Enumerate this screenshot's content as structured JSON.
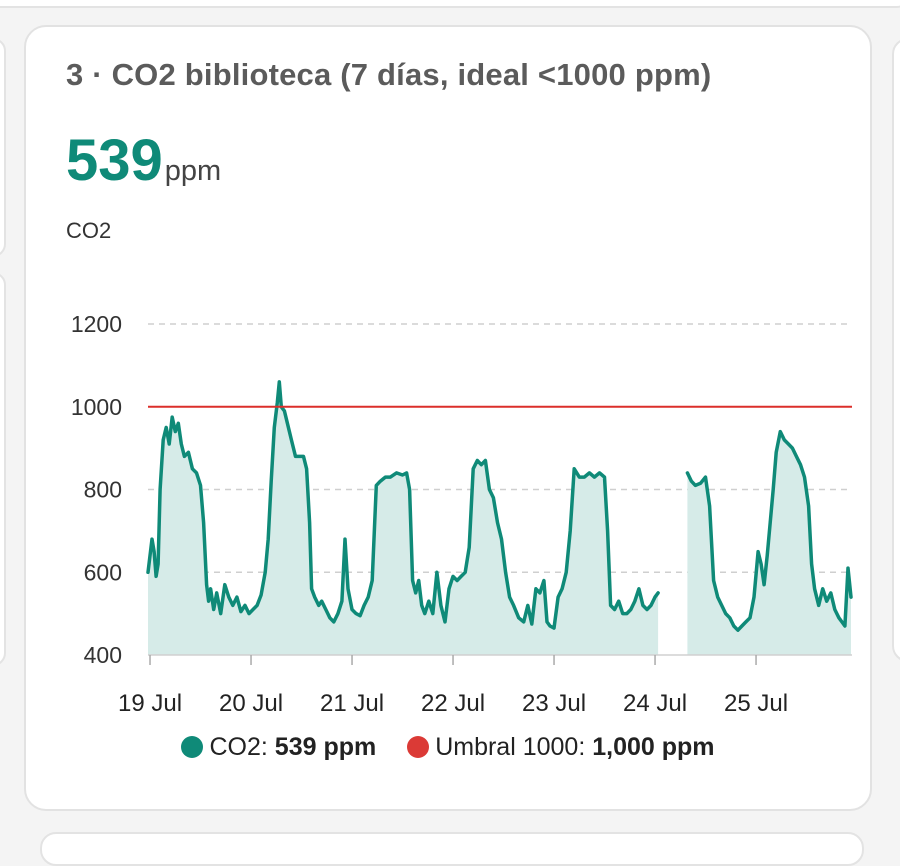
{
  "card": {
    "title": "3 · CO2 biblioteca (7 días, ideal <1000 ppm)",
    "current_value": "539",
    "current_unit": "ppm",
    "entity_label": "CO2"
  },
  "colors": {
    "co2": "#0f8a78",
    "co2_fill": "#d6ebe8",
    "threshold": "#db2f2a"
  },
  "legend": [
    {
      "name": "CO2",
      "sep": ": ",
      "value": "539 ppm",
      "color": "#0f8a78"
    },
    {
      "name": "Umbral 1000",
      "sep": ": ",
      "value": "1,000 ppm",
      "color": "#db3a36"
    }
  ],
  "chart_data": {
    "type": "line",
    "ylim": [
      400,
      1200
    ],
    "y_ticks": [
      400,
      600,
      800,
      1000,
      1200
    ],
    "y_tick_labels": [
      "400",
      "600",
      "800",
      "1000",
      "1200"
    ],
    "xlim": [
      -0.02,
      6.95
    ],
    "x_ticks": [
      0,
      1,
      2,
      3,
      4,
      5,
      6
    ],
    "x_tick_labels": [
      "19 Jul",
      "20 Jul",
      "21 Jul",
      "22 Jul",
      "23 Jul",
      "24 Jul",
      "25 Jul"
    ],
    "grid": true,
    "series": [
      {
        "name": "CO2",
        "area": true,
        "segments": [
          [
            [
              -0.02,
              600
            ],
            [
              0.02,
              680
            ],
            [
              0.04,
              650
            ],
            [
              0.06,
              590
            ],
            [
              0.08,
              620
            ],
            [
              0.1,
              800
            ],
            [
              0.13,
              920
            ],
            [
              0.16,
              950
            ],
            [
              0.19,
              910
            ],
            [
              0.22,
              975
            ],
            [
              0.25,
              940
            ],
            [
              0.28,
              960
            ],
            [
              0.31,
              910
            ],
            [
              0.34,
              880
            ],
            [
              0.38,
              890
            ],
            [
              0.42,
              850
            ],
            [
              0.46,
              840
            ],
            [
              0.5,
              810
            ],
            [
              0.53,
              720
            ],
            [
              0.56,
              570
            ],
            [
              0.58,
              530
            ],
            [
              0.6,
              560
            ],
            [
              0.63,
              510
            ],
            [
              0.66,
              550
            ],
            [
              0.7,
              500
            ],
            [
              0.74,
              570
            ],
            [
              0.78,
              540
            ],
            [
              0.82,
              520
            ],
            [
              0.86,
              540
            ],
            [
              0.9,
              505
            ],
            [
              0.94,
              520
            ],
            [
              0.98,
              500
            ],
            [
              1.02,
              510
            ],
            [
              1.06,
              520
            ],
            [
              1.1,
              545
            ],
            [
              1.14,
              600
            ],
            [
              1.17,
              680
            ],
            [
              1.2,
              820
            ],
            [
              1.23,
              950
            ],
            [
              1.26,
              1010
            ],
            [
              1.28,
              1060
            ],
            [
              1.3,
              1000
            ],
            [
              1.33,
              990
            ],
            [
              1.36,
              960
            ],
            [
              1.4,
              920
            ],
            [
              1.44,
              880
            ],
            [
              1.48,
              880
            ],
            [
              1.52,
              880
            ],
            [
              1.55,
              850
            ],
            [
              1.58,
              720
            ],
            [
              1.6,
              560
            ],
            [
              1.63,
              540
            ],
            [
              1.67,
              520
            ],
            [
              1.7,
              530
            ],
            [
              1.74,
              510
            ],
            [
              1.78,
              490
            ],
            [
              1.82,
              480
            ],
            [
              1.86,
              500
            ],
            [
              1.9,
              530
            ],
            [
              1.93,
              680
            ],
            [
              1.96,
              560
            ],
            [
              2.0,
              510
            ],
            [
              2.04,
              500
            ],
            [
              2.08,
              495
            ],
            [
              2.12,
              520
            ],
            [
              2.16,
              540
            ],
            [
              2.2,
              580
            ],
            [
              2.24,
              810
            ],
            [
              2.28,
              820
            ],
            [
              2.33,
              830
            ],
            [
              2.38,
              830
            ],
            [
              2.44,
              840
            ],
            [
              2.5,
              835
            ],
            [
              2.54,
              840
            ],
            [
              2.57,
              800
            ],
            [
              2.6,
              580
            ],
            [
              2.63,
              550
            ],
            [
              2.66,
              580
            ],
            [
              2.69,
              520
            ],
            [
              2.72,
              500
            ],
            [
              2.76,
              530
            ],
            [
              2.8,
              500
            ],
            [
              2.84,
              600
            ],
            [
              2.88,
              520
            ],
            [
              2.92,
              480
            ],
            [
              2.96,
              560
            ],
            [
              3.0,
              590
            ],
            [
              3.04,
              580
            ],
            [
              3.08,
              590
            ],
            [
              3.12,
              600
            ],
            [
              3.16,
              660
            ],
            [
              3.2,
              850
            ],
            [
              3.24,
              870
            ],
            [
              3.28,
              860
            ],
            [
              3.32,
              870
            ],
            [
              3.36,
              800
            ],
            [
              3.4,
              780
            ],
            [
              3.44,
              720
            ],
            [
              3.48,
              680
            ],
            [
              3.52,
              600
            ],
            [
              3.56,
              540
            ],
            [
              3.6,
              520
            ],
            [
              3.65,
              490
            ],
            [
              3.7,
              480
            ],
            [
              3.74,
              520
            ],
            [
              3.78,
              475
            ],
            [
              3.82,
              560
            ],
            [
              3.86,
              550
            ],
            [
              3.9,
              580
            ],
            [
              3.93,
              480
            ],
            [
              3.96,
              470
            ],
            [
              4.0,
              465
            ],
            [
              4.04,
              540
            ],
            [
              4.08,
              560
            ],
            [
              4.12,
              600
            ],
            [
              4.16,
              700
            ],
            [
              4.2,
              850
            ],
            [
              4.25,
              830
            ],
            [
              4.3,
              830
            ],
            [
              4.35,
              840
            ],
            [
              4.4,
              830
            ],
            [
              4.45,
              840
            ],
            [
              4.5,
              830
            ],
            [
              4.53,
              700
            ],
            [
              4.56,
              520
            ],
            [
              4.6,
              510
            ],
            [
              4.64,
              530
            ],
            [
              4.68,
              500
            ],
            [
              4.72,
              500
            ],
            [
              4.76,
              510
            ],
            [
              4.8,
              530
            ],
            [
              4.84,
              560
            ],
            [
              4.88,
              520
            ],
            [
              4.92,
              510
            ],
            [
              4.96,
              520
            ],
            [
              5.0,
              540
            ],
            [
              5.03,
              550
            ]
          ],
          [
            [
              5.32,
              840
            ],
            [
              5.36,
              820
            ],
            [
              5.4,
              810
            ],
            [
              5.45,
              815
            ],
            [
              5.5,
              830
            ],
            [
              5.54,
              760
            ],
            [
              5.58,
              580
            ],
            [
              5.62,
              540
            ],
            [
              5.66,
              520
            ],
            [
              5.7,
              500
            ],
            [
              5.74,
              490
            ],
            [
              5.78,
              470
            ],
            [
              5.82,
              460
            ],
            [
              5.86,
              470
            ],
            [
              5.9,
              480
            ],
            [
              5.94,
              490
            ],
            [
              5.98,
              540
            ],
            [
              6.02,
              650
            ],
            [
              6.05,
              620
            ],
            [
              6.08,
              570
            ],
            [
              6.11,
              640
            ],
            [
              6.14,
              720
            ],
            [
              6.17,
              800
            ],
            [
              6.2,
              890
            ],
            [
              6.24,
              940
            ],
            [
              6.28,
              920
            ],
            [
              6.32,
              910
            ],
            [
              6.36,
              900
            ],
            [
              6.4,
              880
            ],
            [
              6.44,
              860
            ],
            [
              6.48,
              830
            ],
            [
              6.52,
              760
            ],
            [
              6.55,
              620
            ],
            [
              6.58,
              560
            ],
            [
              6.62,
              520
            ],
            [
              6.66,
              560
            ],
            [
              6.7,
              530
            ],
            [
              6.74,
              550
            ],
            [
              6.78,
              510
            ],
            [
              6.82,
              490
            ],
            [
              6.85,
              480
            ],
            [
              6.88,
              470
            ],
            [
              6.91,
              610
            ],
            [
              6.94,
              540
            ]
          ]
        ]
      },
      {
        "name": "Umbral 1000",
        "constant": 1000
      }
    ]
  }
}
